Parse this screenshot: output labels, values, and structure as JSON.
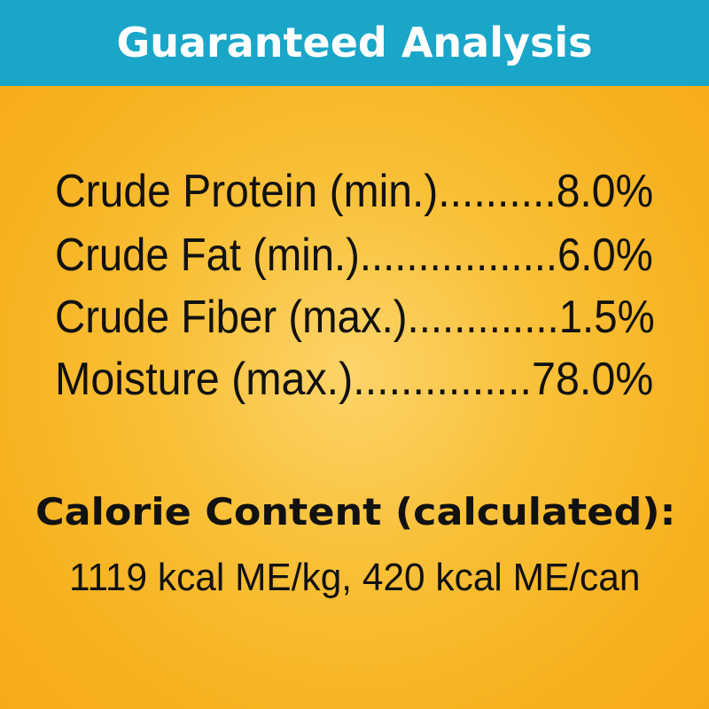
{
  "header": {
    "title": "Guaranteed Analysis",
    "background_color": "#1aa6c8"
  },
  "analysis": [
    {
      "label": "Crude Protein (min.)",
      "leader": "..........",
      "value": "8.0%"
    },
    {
      "label": "Crude Fat (min.)",
      "leader": ".................",
      "value": "6.0%"
    },
    {
      "label": "Crude Fiber (max.)",
      "leader": ".............",
      "value": "1.5%"
    },
    {
      "label": "Moisture (max.)",
      "leader": "...............",
      "value": "78.0%"
    }
  ],
  "calorie": {
    "heading": "Calorie Content (calculated):",
    "text": "1119 kcal ME/kg, 420 kcal ME/can"
  },
  "colors": {
    "background": "#f9c13a"
  }
}
